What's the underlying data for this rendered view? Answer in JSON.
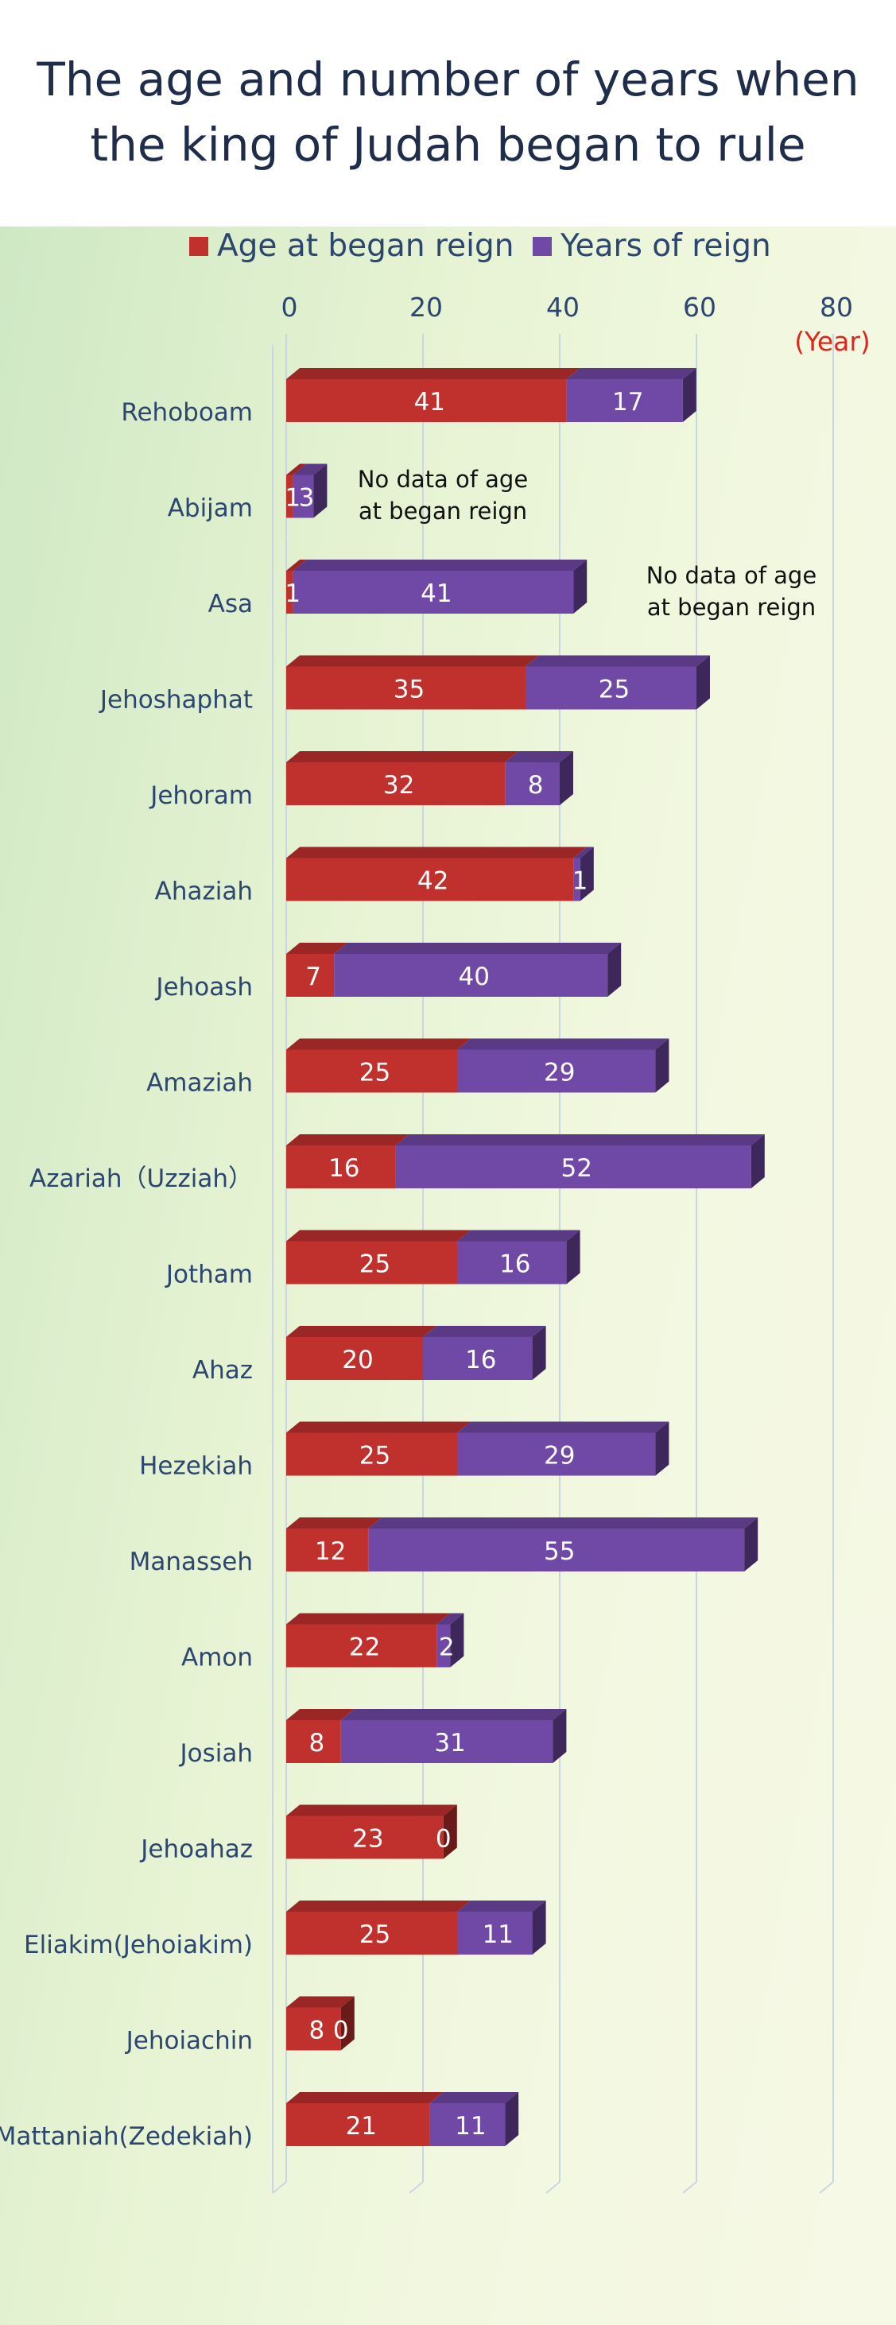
{
  "chart_data": {
    "type": "bar",
    "stacked": true,
    "orientation": "horizontal",
    "title_lines": [
      "The age and number of years when",
      "the king of Judah began to rule"
    ],
    "x_axis": {
      "ticks": [
        0,
        20,
        40,
        60,
        80
      ],
      "range": [
        0,
        80
      ],
      "unit_label": "(Year)",
      "position": "top"
    },
    "grid": true,
    "legend_position": "top",
    "categories": [
      "Rehoboam",
      "Abijam",
      "Asa",
      "Jehoshaphat",
      "Jehoram",
      "Ahaziah",
      "Jehoash",
      "Amaziah",
      "Azariah（Uzziah）",
      "Jotham",
      "Ahaz",
      "Hezekiah",
      "Manasseh",
      "Amon",
      "Josiah",
      "Jehoahaz",
      "Eliakim(Jehoiakim)",
      "Jehoiachin",
      "Mattaniah(Zedekiah)"
    ],
    "series": [
      {
        "name": "Age at began reign",
        "color": "#c0312e",
        "values": [
          41,
          1,
          1,
          35,
          32,
          42,
          7,
          25,
          16,
          25,
          20,
          25,
          12,
          22,
          8,
          23,
          25,
          8,
          21
        ]
      },
      {
        "name": "Years of reign",
        "color": "#7048a6",
        "values": [
          17,
          3,
          41,
          25,
          8,
          1,
          40,
          29,
          52,
          16,
          16,
          29,
          55,
          2,
          31,
          0,
          11,
          0,
          11
        ]
      }
    ],
    "annotations": [
      {
        "lines": [
          "No data of age",
          "at began reign"
        ],
        "category": "Abijam"
      },
      {
        "lines": [
          "No data of age",
          "at began reign"
        ],
        "category": "Asa"
      }
    ]
  }
}
